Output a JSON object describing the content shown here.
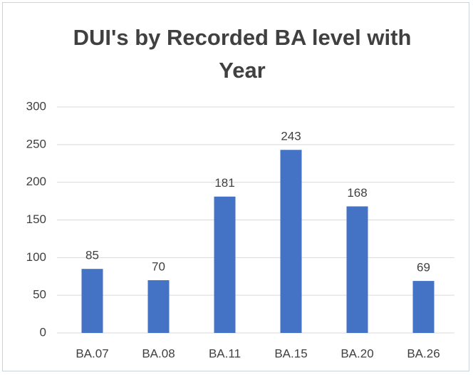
{
  "chart_data": {
    "type": "bar",
    "title": "DUI's by Recorded BA level with Year",
    "categories": [
      "BA.07",
      "BA.08",
      "BA.11",
      "BA.15",
      "BA.20",
      "BA.26"
    ],
    "values": [
      85,
      70,
      181,
      243,
      168,
      69
    ],
    "color": "#4472c4",
    "ylim": [
      0,
      300
    ],
    "yticks": [
      0,
      50,
      100,
      150,
      200,
      250,
      300
    ],
    "grid": true
  }
}
